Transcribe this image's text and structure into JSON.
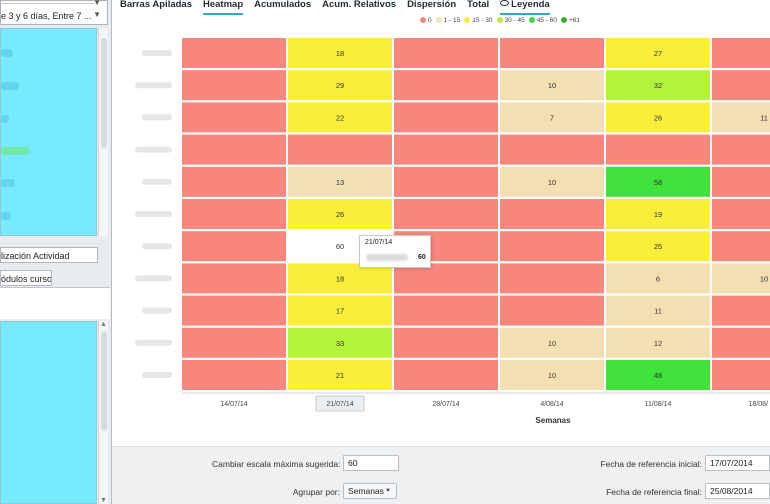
{
  "left_panel": {
    "select_text": "e 3 y 6 días, Entre 7 ...",
    "tab1_label": "lización Actividad",
    "tab2_label": "ódulos curso"
  },
  "tabs": [
    {
      "label": "Barras Apiladas",
      "active": false
    },
    {
      "label": "Heatmap",
      "active": true
    },
    {
      "label": "Acumulados",
      "active": false
    },
    {
      "label": "Acum. Relativos",
      "active": false
    },
    {
      "label": "Dispersión",
      "active": false
    },
    {
      "label": "Total",
      "active": false
    },
    {
      "label": "Leyenda",
      "active": false,
      "icon": "eye-icon"
    }
  ],
  "legend": [
    {
      "label": "0",
      "color": "#f08a80"
    },
    {
      "label": "1 - 15",
      "color": "#f3e2b2"
    },
    {
      "label": "15 - 30",
      "color": "#f9ec3a"
    },
    {
      "label": "30 - 45",
      "color": "#b7f03c"
    },
    {
      "label": "45 - 60",
      "color": "#44d63f"
    },
    {
      "label": "+61",
      "color": "#2fb12a"
    }
  ],
  "colors": {
    "zero": "#f7867d",
    "low": "#f2e0b3",
    "mid": "#fbee3b",
    "high": "#b3f43a",
    "veryhigh": "#3fe23a",
    "hover": "#ffffff"
  },
  "chart_data": {
    "type": "heatmap",
    "xlabel": "Semanas",
    "x": [
      "14/07/14",
      "21/07/14",
      "28/07/14",
      "4/08/14",
      "11/08/14",
      "18/08/"
    ],
    "highlighted_x": "21/07/14",
    "rows": 11,
    "values": [
      [
        0,
        18,
        0,
        0,
        27,
        0
      ],
      [
        0,
        29,
        0,
        10,
        32,
        0
      ],
      [
        0,
        22,
        0,
        7,
        26,
        11
      ],
      [
        0,
        0,
        0,
        0,
        0,
        0
      ],
      [
        0,
        13,
        0,
        10,
        58,
        0
      ],
      [
        0,
        26,
        0,
        0,
        19,
        0
      ],
      [
        0,
        60,
        0,
        0,
        25,
        0
      ],
      [
        0,
        18,
        0,
        0,
        6,
        10
      ],
      [
        0,
        17,
        0,
        0,
        11,
        0
      ],
      [
        0,
        33,
        0,
        10,
        12,
        0
      ],
      [
        0,
        21,
        0,
        10,
        48,
        0
      ]
    ],
    "hover_cell": {
      "row": 6,
      "col": 1
    }
  },
  "tooltip": {
    "date": "21/07/14",
    "value": "60"
  },
  "controls": {
    "scale_label": "Cambiar escala máxima sugerida:",
    "scale_value": "60",
    "group_label": "Agrupar por:",
    "group_value": "Semanas",
    "ref_start_label": "Fecha de referencia inicial:",
    "ref_start_value": "17/07/2014",
    "ref_end_label": "Fecha de referencia final:",
    "ref_end_value": "25/08/2014"
  }
}
